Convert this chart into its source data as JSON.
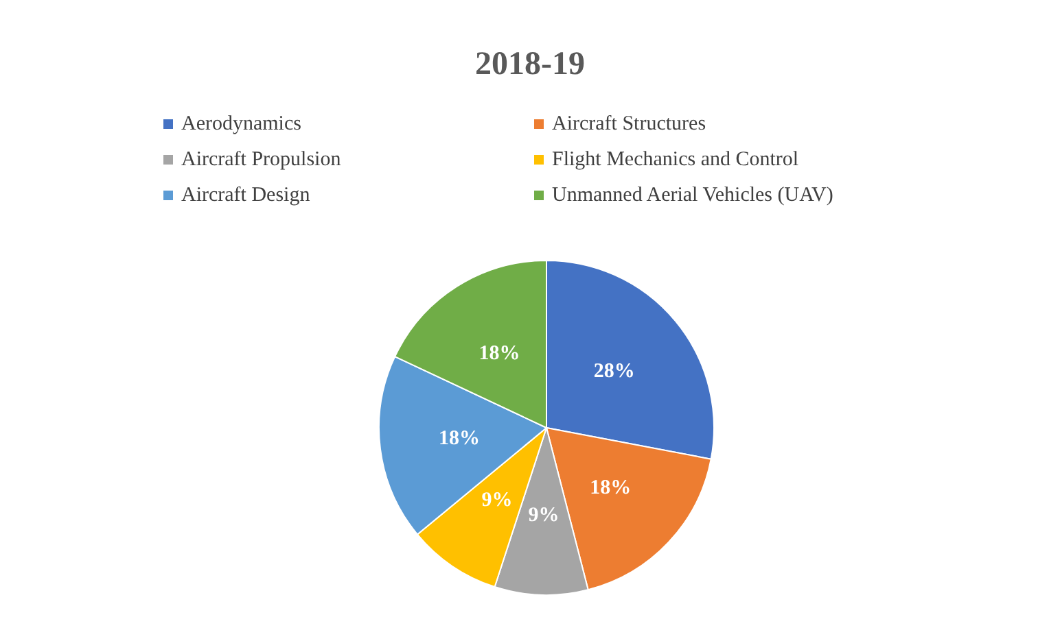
{
  "chart_data": {
    "type": "pie",
    "title": "2018-19",
    "categories": [
      "Aerodynamics",
      "Aircraft Structures",
      "Aircraft Propulsion",
      "Flight Mechanics and Control",
      "Aircraft Design",
      "Unmanned Aerial Vehicles (UAV)"
    ],
    "values": [
      28,
      18,
      9,
      9,
      18,
      18
    ],
    "colors": [
      "#4472c4",
      "#ed7d31",
      "#a5a5a5",
      "#ffc000",
      "#5b9bd5",
      "#70ad47"
    ],
    "value_labels": [
      "28%",
      "18%",
      "9%",
      "9%",
      "18%",
      "18%"
    ],
    "legend": "top"
  }
}
